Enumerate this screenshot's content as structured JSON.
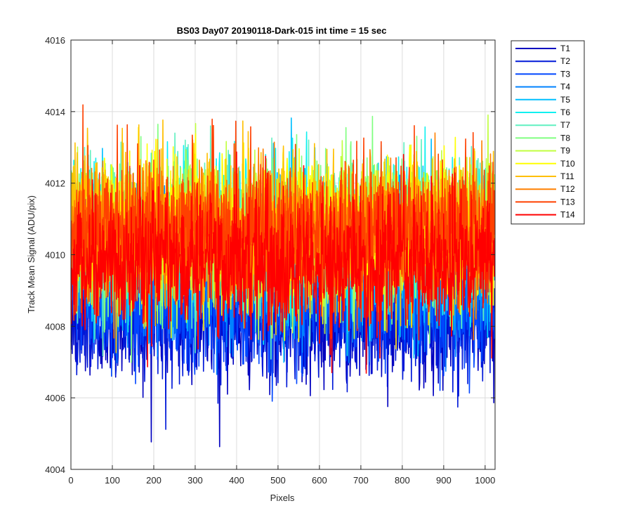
{
  "chart_data": {
    "type": "line",
    "title": "BS03 Day07 20190118-Dark-015 int time = 15 sec",
    "xlabel": "Pixels",
    "ylabel": "Track Mean Signal (ADU/pix)",
    "xlim": [
      0,
      1024
    ],
    "ylim": [
      4004,
      4016
    ],
    "xticks": [
      0,
      100,
      200,
      300,
      400,
      500,
      600,
      700,
      800,
      900,
      1000
    ],
    "yticks": [
      4004,
      4006,
      4008,
      4010,
      4012,
      4014,
      4016
    ],
    "grid": true,
    "legend_position": "outside-top-right",
    "n_points": 1024,
    "noise_note_hidden": false,
    "series": [
      {
        "name": "T1",
        "color": "#0000bf",
        "mean": 4008.2,
        "noise": 0.85
      },
      {
        "name": "T2",
        "color": "#0018d8",
        "mean": 4008.4,
        "noise": 0.85
      },
      {
        "name": "T3",
        "color": "#0046ff",
        "mean": 4008.8,
        "noise": 0.9
      },
      {
        "name": "T4",
        "color": "#0082ff",
        "mean": 4009.5,
        "noise": 0.95
      },
      {
        "name": "T5",
        "color": "#00bfff",
        "mean": 4010.2,
        "noise": 1.0
      },
      {
        "name": "T6",
        "color": "#10f0f0",
        "mean": 4010.6,
        "noise": 1.0
      },
      {
        "name": "T7",
        "color": "#60f0c0",
        "mean": 4010.6,
        "noise": 1.0
      },
      {
        "name": "T8",
        "color": "#80ff80",
        "mean": 4010.6,
        "noise": 1.0
      },
      {
        "name": "T9",
        "color": "#c0ff40",
        "mean": 4010.6,
        "noise": 1.0
      },
      {
        "name": "T10",
        "color": "#ffff00",
        "mean": 4010.8,
        "noise": 1.0
      },
      {
        "name": "T11",
        "color": "#ffbf00",
        "mean": 4010.8,
        "noise": 1.0
      },
      {
        "name": "T12",
        "color": "#ff8000",
        "mean": 4010.6,
        "noise": 1.0
      },
      {
        "name": "T13",
        "color": "#ff4000",
        "mean": 4010.6,
        "noise": 0.95
      },
      {
        "name": "T14",
        "color": "#ff0000",
        "mean": 4009.8,
        "noise": 0.95
      }
    ]
  }
}
